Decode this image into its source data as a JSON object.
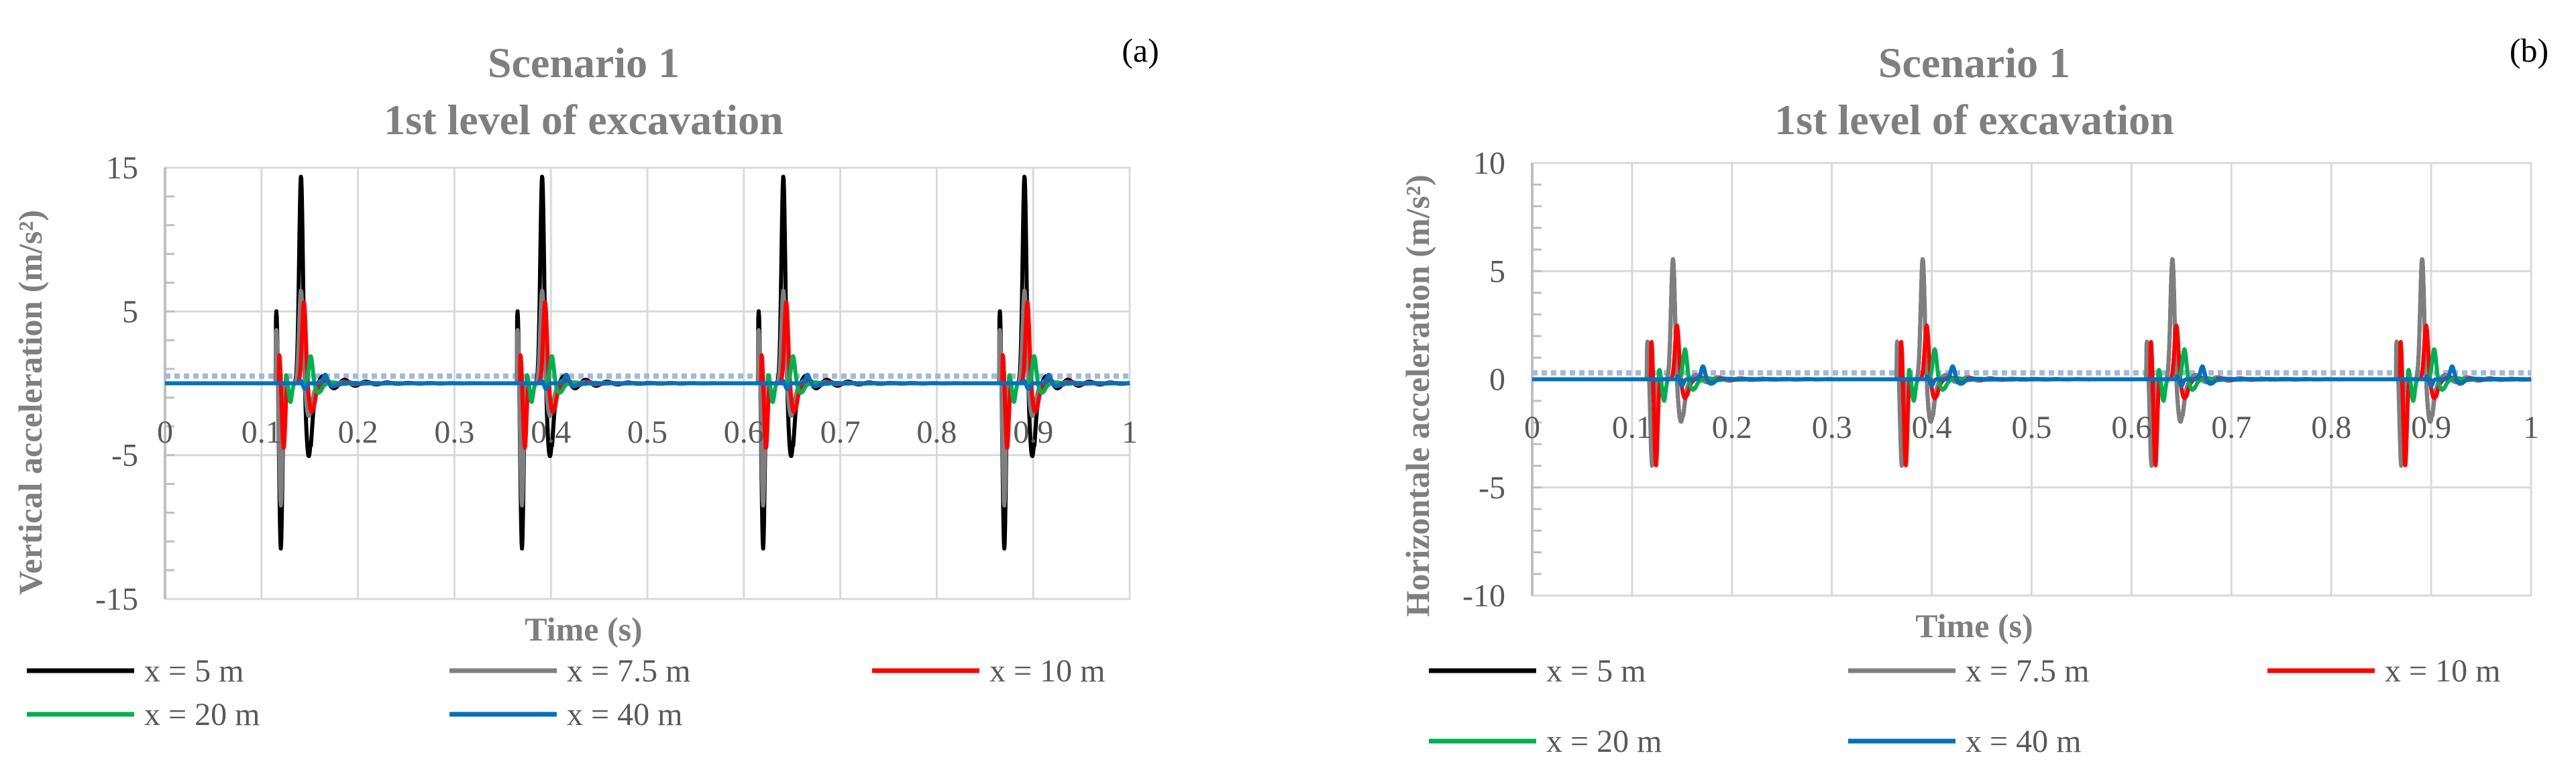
{
  "chart_data": [
    {
      "type": "line",
      "panel_label": "(a)",
      "title": "Scenario 1",
      "subtitle": "1st level of excavation",
      "xlabel": "Time (s)",
      "ylabel": "Vertical acceleration (m/s²)",
      "xlim": [
        0,
        1
      ],
      "ylim": [
        -15,
        15
      ],
      "xticks": [
        "0",
        "0.1",
        "0.2",
        "0.3",
        "0.4",
        "0.5",
        "0.6",
        "0.7",
        "0.8",
        "0.9",
        "1"
      ],
      "yticks": [
        "15",
        "5",
        "-5",
        "-15"
      ],
      "grid": true,
      "legend_position": "bottom",
      "reference_level": 0.5,
      "series": [
        {
          "name": "x = 5 m",
          "color": "#000000",
          "peak_up": 14.5,
          "peak_down": -11.5,
          "delay": 0.0
        },
        {
          "name": "x = 7.5 m",
          "color": "#7f7f7f",
          "peak_up": 6.5,
          "peak_down": -8.5,
          "delay": 0.0
        },
        {
          "name": "x = 10 m",
          "color": "#ff0000",
          "peak_up": 5.7,
          "peak_down": -4.5,
          "delay": 0.003
        },
        {
          "name": "x = 20 m",
          "color": "#00b050",
          "peak_up": 1.9,
          "peak_down": -1.3,
          "delay": 0.01
        },
        {
          "name": "x = 40 m",
          "color": "#0070c0",
          "peak_up": 0.6,
          "peak_down": -0.4,
          "delay": 0.025
        }
      ]
    },
    {
      "type": "line",
      "panel_label": "(b)",
      "title": "Scenario 1",
      "subtitle": "1st level of excavation",
      "xlabel": "Time (s)",
      "ylabel": "Horizontale acceleration (m/s²)",
      "xlim": [
        0,
        1
      ],
      "ylim": [
        -10,
        10
      ],
      "xticks": [
        "0",
        "0.1",
        "0.2",
        "0.3",
        "0.4",
        "0.5",
        "0.6",
        "0.7",
        "0.8",
        "0.9",
        "1"
      ],
      "yticks": [
        "10",
        "5",
        "0",
        "-5",
        "-10"
      ],
      "grid": true,
      "legend_position": "bottom",
      "reference_level": 0.3,
      "series": [
        {
          "name": "x = 5 m",
          "color": "#000000",
          "peak_up": 5.6,
          "peak_down": -1.0,
          "delay": 0.0
        },
        {
          "name": "x = 7.5 m",
          "color": "#7f7f7f",
          "peak_up": 5.6,
          "peak_down": -4.0,
          "delay": 0.0
        },
        {
          "name": "x = 10 m",
          "color": "#ff0000",
          "peak_up": 2.5,
          "peak_down": -4.0,
          "delay": 0.004
        },
        {
          "name": "x = 20 m",
          "color": "#00b050",
          "peak_up": 1.4,
          "peak_down": -1.0,
          "delay": 0.012
        },
        {
          "name": "x = 40 m",
          "color": "#0070c0",
          "peak_up": 0.6,
          "peak_down": -0.3,
          "delay": 0.03
        }
      ]
    }
  ],
  "pulse_times": [
    0.115,
    0.365,
    0.615,
    0.865
  ]
}
